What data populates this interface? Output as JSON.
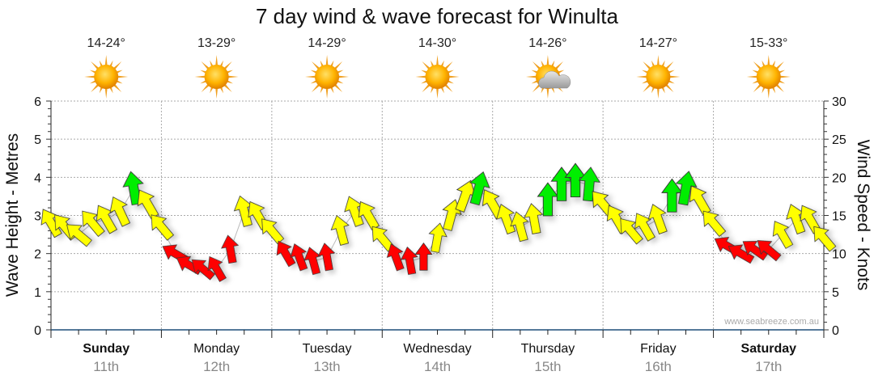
{
  "chart_data": {
    "type": "line",
    "title": "7 day wind & wave forecast for Winulta",
    "ylabel": "Wave Height - Metres",
    "y2label": "Wind Speed - Knots",
    "ylim": [
      0,
      6
    ],
    "y2lim": [
      0,
      30
    ],
    "yticks": [
      "0",
      "1",
      "2",
      "3",
      "4",
      "5",
      "6"
    ],
    "y2ticks": [
      "0",
      "5",
      "10",
      "15",
      "20",
      "25",
      "30"
    ],
    "grid": true,
    "credit": "www.seabreeze.com.au",
    "days": [
      {
        "name": "Sunday",
        "date": "11th",
        "bold": true,
        "temp": "14-24°",
        "weather": "sunny"
      },
      {
        "name": "Monday",
        "date": "12th",
        "bold": false,
        "temp": "13-29°",
        "weather": "sunny"
      },
      {
        "name": "Tuesday",
        "date": "13th",
        "bold": false,
        "temp": "14-29°",
        "weather": "sunny"
      },
      {
        "name": "Wednesday",
        "date": "14th",
        "bold": false,
        "temp": "14-30°",
        "weather": "sunny"
      },
      {
        "name": "Thursday",
        "date": "15th",
        "bold": false,
        "temp": "14-26°",
        "weather": "partly-cloudy"
      },
      {
        "name": "Friday",
        "date": "16th",
        "bold": false,
        "temp": "14-27°",
        "weather": "sunny"
      },
      {
        "name": "Saturday",
        "date": "17th",
        "bold": true,
        "temp": "15-33°",
        "weather": "sunny"
      }
    ],
    "interval_hours": 3,
    "wave_height": [
      2.8,
      2.7,
      2.5,
      2.8,
      2.9,
      3.1,
      3.7,
      3.3,
      2.7,
      2.0,
      1.7,
      1.6,
      1.6,
      2.1,
      3.1,
      3.0,
      2.6,
      2.0,
      1.9,
      1.8,
      1.9,
      2.6,
      3.1,
      3.0,
      2.4,
      1.9,
      1.8,
      1.9,
      2.4,
      3.0,
      3.5,
      3.7,
      3.3,
      2.9,
      2.7,
      2.9,
      3.4,
      3.8,
      3.9,
      3.8,
      3.3,
      2.9,
      2.6,
      2.7,
      2.9,
      3.5,
      3.7,
      3.4,
      2.8,
      2.2,
      2.0,
      2.1,
      2.1,
      2.5,
      2.9,
      2.9,
      2.4
    ],
    "wind_knots": [
      14,
      13,
      12,
      13,
      14,
      15,
      20,
      15,
      13,
      8,
      7,
      7,
      7,
      9,
      15,
      14,
      12,
      8,
      8,
      8,
      8,
      13,
      15,
      14,
      12,
      8,
      8,
      8,
      12,
      16,
      18,
      20,
      16,
      14,
      13,
      14,
      20,
      21,
      21,
      21,
      16,
      14,
      13,
      13,
      14,
      20,
      21,
      16,
      13,
      8,
      8,
      8,
      8,
      12,
      14,
      14,
      12
    ],
    "wind_direction_deg": [
      330,
      320,
      310,
      320,
      330,
      335,
      350,
      330,
      320,
      300,
      300,
      310,
      330,
      350,
      345,
      330,
      320,
      330,
      340,
      345,
      350,
      345,
      340,
      330,
      320,
      340,
      350,
      0,
      10,
      15,
      20,
      15,
      330,
      340,
      345,
      350,
      0,
      0,
      0,
      5,
      320,
      330,
      320,
      330,
      340,
      0,
      10,
      330,
      320,
      300,
      300,
      305,
      310,
      330,
      340,
      330,
      320
    ],
    "colors": {
      "calm": "#ff0000",
      "moderate": "#ffff00",
      "strong": "#00ee00",
      "axis": "#1f4e79",
      "grid": "#aaaaaa"
    }
  }
}
